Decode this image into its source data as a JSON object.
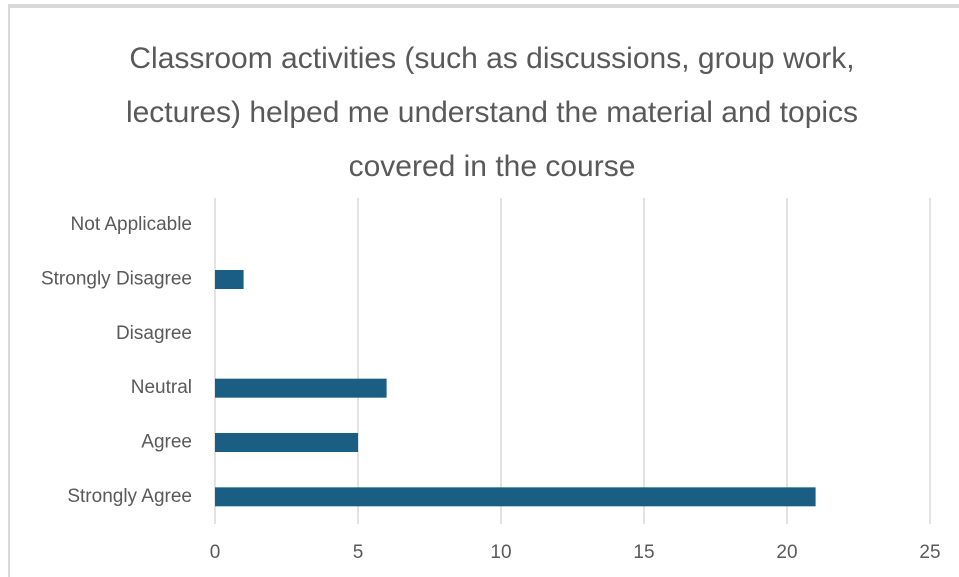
{
  "chart_data": {
    "type": "barh",
    "title": "Classroom activities (such as discussions, group work, lectures) helped me understand the material and topics covered in the course",
    "categories": [
      "Not Applicable",
      "Strongly Disagree",
      "Disagree",
      "Neutral",
      "Agree",
      "Strongly Agree"
    ],
    "values": [
      0,
      1,
      0,
      6,
      5,
      21
    ],
    "color": "#1b5e83",
    "xlim": [
      0,
      25
    ],
    "xticks": [
      0,
      5,
      10,
      15,
      20,
      25
    ],
    "grid": true
  }
}
